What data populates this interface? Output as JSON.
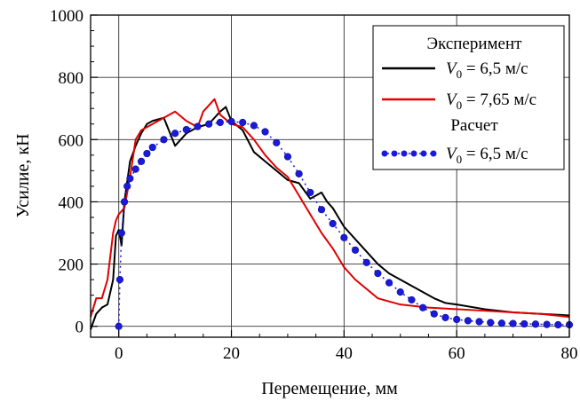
{
  "chart_data": {
    "type": "line",
    "xlabel": "Перемещение, мм",
    "ylabel": "Усилие, кН",
    "xlim": [
      -5,
      80
    ],
    "ylim": [
      -35,
      1000
    ],
    "xticks": [
      0,
      20,
      40,
      60,
      80
    ],
    "yticks": [
      0,
      200,
      400,
      600,
      800,
      1000
    ],
    "grid": true,
    "legend": {
      "placement": "top-right",
      "groups": [
        {
          "title": "Эксперимент",
          "items": [
            0,
            1
          ]
        },
        {
          "title": "Расчет",
          "items": [
            2
          ]
        }
      ]
    },
    "series": [
      {
        "symbol": "V",
        "subscript": "0",
        "value": " = 6,5 м/с",
        "color": "#000000",
        "style": "solid",
        "x": [
          -5,
          -4,
          -3,
          -2,
          -1,
          -0.5,
          0,
          0.5,
          1,
          2,
          3,
          4,
          5,
          6,
          8,
          10,
          12,
          14,
          16,
          18,
          19,
          20,
          22,
          24,
          26,
          28,
          30,
          32,
          34,
          36,
          37,
          38,
          40,
          42,
          44,
          46,
          48,
          50,
          52,
          54,
          56,
          58,
          60,
          65,
          70,
          75,
          80
        ],
        "y": [
          -10,
          40,
          60,
          70,
          150,
          290,
          310,
          260,
          400,
          530,
          580,
          620,
          650,
          660,
          670,
          580,
          620,
          640,
          650,
          690,
          705,
          660,
          630,
          560,
          530,
          500,
          470,
          460,
          410,
          430,
          400,
          380,
          320,
          280,
          240,
          200,
          170,
          150,
          130,
          110,
          90,
          75,
          70,
          55,
          45,
          40,
          35
        ]
      },
      {
        "symbol": "V",
        "subscript": "0",
        "value": " = 7,65 м/с",
        "color": "#e00000",
        "style": "solid",
        "x": [
          -5,
          -4,
          -3,
          -2,
          -1,
          -0.5,
          0,
          0.5,
          1,
          2,
          3,
          4,
          6,
          8,
          10,
          12,
          14,
          15,
          16,
          17,
          18,
          20,
          22,
          24,
          26,
          28,
          30,
          32,
          34,
          36,
          38,
          40,
          42,
          44,
          46,
          48,
          50,
          55,
          60,
          65,
          70,
          75,
          80
        ],
        "y": [
          30,
          90,
          90,
          150,
          300,
          340,
          360,
          370,
          380,
          480,
          600,
          630,
          650,
          670,
          690,
          660,
          640,
          690,
          710,
          730,
          680,
          650,
          640,
          600,
          550,
          510,
          480,
          420,
          360,
          300,
          250,
          190,
          150,
          120,
          90,
          80,
          70,
          60,
          55,
          50,
          45,
          40,
          30
        ]
      },
      {
        "symbol": "V",
        "subscript": "0",
        "value": " = 6,5 м/с",
        "color": "#1a1adb",
        "style": "dotted",
        "x": [
          0,
          0.2,
          0.5,
          1,
          1.5,
          2,
          3,
          4,
          5,
          6,
          8,
          10,
          12,
          14,
          16,
          18,
          20,
          22,
          24,
          26,
          28,
          30,
          32,
          34,
          36,
          38,
          40,
          42,
          44,
          46,
          48,
          50,
          52,
          54,
          56,
          58,
          60,
          62,
          64,
          66,
          68,
          70,
          72,
          74,
          76,
          78,
          80
        ],
        "y": [
          0,
          150,
          300,
          400,
          450,
          475,
          505,
          530,
          555,
          575,
          600,
          620,
          632,
          642,
          650,
          655,
          658,
          655,
          645,
          625,
          590,
          545,
          490,
          430,
          375,
          330,
          285,
          245,
          205,
          170,
          140,
          110,
          85,
          60,
          40,
          28,
          22,
          18,
          15,
          12,
          10,
          9,
          8,
          7,
          6,
          5,
          5
        ]
      }
    ]
  }
}
